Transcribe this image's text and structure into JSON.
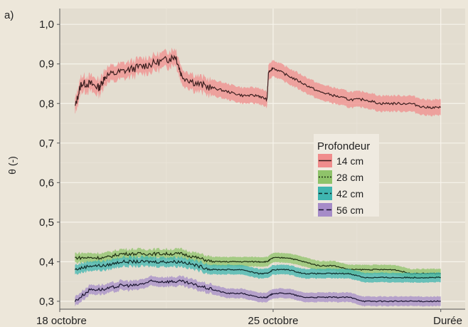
{
  "chart_data": {
    "type": "line",
    "panel_label": "a)",
    "ylabel": "θ (-)",
    "xlabel": "",
    "ylim": [
      0.28,
      1.04
    ],
    "y_ticks": [
      "0,3",
      "0,4",
      "0,5",
      "0,6",
      "0,7",
      "0,8",
      "0,9",
      "1,0"
    ],
    "x_ticks": [
      "18 octobre",
      "25 octobre",
      "Durée"
    ],
    "x_tick_days": [
      0,
      7,
      12.5
    ],
    "xlim": [
      0,
      13.3
    ],
    "grid": true,
    "legend": {
      "title": "Profondeur",
      "placement": "center-right",
      "entries": [
        "14 cm",
        "28 cm",
        "42 cm",
        "56 cm"
      ]
    },
    "series": [
      {
        "name": "14 cm",
        "line_color": "#3a1e1e",
        "band_color": "#f08c8c",
        "dash": "",
        "x": [
          0.5,
          0.7,
          1.0,
          1.3,
          1.5,
          2.0,
          2.5,
          3.0,
          3.5,
          3.8,
          4.0,
          4.5,
          5.0,
          5.5,
          6.0,
          6.5,
          6.8,
          6.85,
          7.0,
          7.5,
          8.0,
          8.5,
          9.0,
          9.5,
          10.0,
          10.5,
          11.0,
          11.5,
          12.0,
          12.5
        ],
        "values": [
          0.79,
          0.85,
          0.85,
          0.84,
          0.87,
          0.88,
          0.89,
          0.9,
          0.91,
          0.92,
          0.87,
          0.85,
          0.84,
          0.83,
          0.82,
          0.82,
          0.81,
          0.88,
          0.89,
          0.87,
          0.85,
          0.83,
          0.82,
          0.81,
          0.81,
          0.8,
          0.8,
          0.8,
          0.79,
          0.79
        ],
        "band_half_width": 0.02
      },
      {
        "name": "28 cm",
        "line_color": "#1e2e12",
        "band_color": "#8fc36a",
        "dash": "2,2",
        "x": [
          0.5,
          1.0,
          1.5,
          2.0,
          2.5,
          3.0,
          3.5,
          4.0,
          4.5,
          5.0,
          5.5,
          6.0,
          6.5,
          6.8,
          7.0,
          7.5,
          8.0,
          8.5,
          9.0,
          9.5,
          10.0,
          10.5,
          11.0,
          11.5,
          12.0,
          12.5
        ],
        "values": [
          0.41,
          0.41,
          0.41,
          0.42,
          0.42,
          0.42,
          0.42,
          0.42,
          0.41,
          0.4,
          0.4,
          0.4,
          0.4,
          0.4,
          0.41,
          0.41,
          0.4,
          0.39,
          0.39,
          0.38,
          0.38,
          0.38,
          0.38,
          0.37,
          0.37,
          0.37
        ],
        "band_half_width": 0.012
      },
      {
        "name": "42 cm",
        "line_color": "#0d2a28",
        "band_color": "#3fb5b0",
        "dash": "5,3",
        "x": [
          0.5,
          1.0,
          1.5,
          2.0,
          2.5,
          3.0,
          3.5,
          4.0,
          4.5,
          5.0,
          5.5,
          6.0,
          6.5,
          6.8,
          7.0,
          7.5,
          8.0,
          8.5,
          9.0,
          9.5,
          10.0,
          10.5,
          11.0,
          11.5,
          12.0,
          12.5
        ],
        "values": [
          0.38,
          0.39,
          0.39,
          0.4,
          0.4,
          0.4,
          0.4,
          0.4,
          0.39,
          0.38,
          0.38,
          0.38,
          0.37,
          0.37,
          0.38,
          0.38,
          0.37,
          0.37,
          0.37,
          0.37,
          0.36,
          0.36,
          0.36,
          0.36,
          0.36,
          0.36
        ],
        "band_half_width": 0.012
      },
      {
        "name": "56 cm",
        "line_color": "#1a1430",
        "band_color": "#a68cc8",
        "dash": "7,4",
        "x": [
          0.5,
          1.0,
          1.5,
          2.0,
          2.5,
          3.0,
          3.5,
          4.0,
          4.5,
          5.0,
          5.5,
          6.0,
          6.5,
          6.8,
          7.0,
          7.5,
          8.0,
          8.5,
          9.0,
          9.5,
          10.0,
          10.5,
          11.0,
          11.5,
          12.0,
          12.5
        ],
        "values": [
          0.3,
          0.33,
          0.33,
          0.34,
          0.34,
          0.35,
          0.35,
          0.35,
          0.34,
          0.33,
          0.32,
          0.32,
          0.31,
          0.31,
          0.32,
          0.32,
          0.31,
          0.31,
          0.31,
          0.31,
          0.3,
          0.3,
          0.3,
          0.3,
          0.3,
          0.3
        ],
        "band_half_width": 0.012
      }
    ]
  }
}
